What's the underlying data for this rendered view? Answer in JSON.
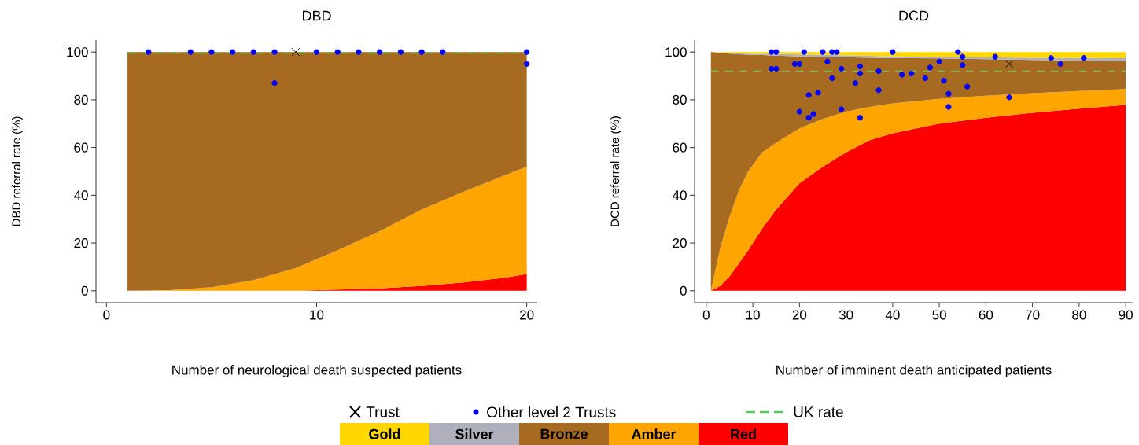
{
  "chart_data": [
    {
      "type": "area",
      "title": "DBD",
      "xlabel": "Number of neurological death suspected patients",
      "ylabel": "DBD referral rate (%)",
      "x": [
        1,
        3,
        5,
        7,
        9,
        11,
        13,
        15,
        17,
        19,
        20
      ],
      "stacked": true,
      "xlim": [
        -0.5,
        20.5
      ],
      "ylim": [
        -5,
        105
      ],
      "xticks": [
        0,
        10,
        20
      ],
      "yticks": [
        0,
        20,
        40,
        60,
        80,
        100
      ],
      "series": [
        {
          "color": "#ff0000",
          "values": [
            0,
            0,
            0,
            0,
            0,
            0.5,
            1,
            2,
            3.5,
            5.5,
            7
          ]
        },
        {
          "color": "#ffa500",
          "values": [
            0,
            0.3,
            1.5,
            4.5,
            9.5,
            16.5,
            24,
            32,
            38,
            43,
            45
          ]
        },
        {
          "color": "#a66a21",
          "values": [
            100,
            99.7,
            98.5,
            95.5,
            90.5,
            83,
            75,
            66,
            58.5,
            51.5,
            48
          ]
        },
        {
          "type": "scatter",
          "marker": "circle",
          "color": "#0000ff",
          "x": [
            2,
            4,
            5,
            6,
            7,
            8,
            8,
            10,
            11,
            12,
            13,
            14,
            15,
            16,
            20,
            20
          ],
          "values": [
            100,
            100,
            100,
            100,
            100,
            100,
            87,
            100,
            100,
            100,
            100,
            100,
            100,
            100,
            100,
            95
          ]
        },
        {
          "type": "scatter",
          "marker": "cross",
          "color": "#000000",
          "x": [
            9
          ],
          "values": [
            100
          ]
        }
      ],
      "ref_lines": [
        {
          "axis": "y",
          "value": 99.5,
          "color": "#5ac85a",
          "line_style": "dashed"
        }
      ]
    },
    {
      "type": "area",
      "title": "DCD",
      "xlabel": "Number of imminent death anticipated patients",
      "ylabel": "DCD referral rate (%)",
      "x": [
        1,
        3,
        5,
        7,
        9,
        12,
        15,
        20,
        25,
        30,
        35,
        40,
        50,
        60,
        70,
        80,
        90
      ],
      "stacked": true,
      "xlim": [
        -2.5,
        91.5
      ],
      "ylim": [
        -5,
        105
      ],
      "xticks": [
        0,
        10,
        20,
        30,
        40,
        50,
        60,
        70,
        80,
        90
      ],
      "yticks": [
        0,
        20,
        40,
        60,
        80,
        100
      ],
      "legend": "bottom",
      "series": [
        {
          "name": "Red",
          "color": "#ff0000",
          "values": [
            0,
            2,
            6,
            11.5,
            17,
            26,
            34,
            45,
            52,
            58,
            63,
            66,
            70,
            72.5,
            74.5,
            76.3,
            77.8
          ]
        },
        {
          "name": "Amber",
          "color": "#ffa500",
          "values": [
            0,
            16,
            25,
            30.5,
            33,
            32,
            28,
            23,
            20,
            17,
            14,
            12.5,
            10.4,
            9.2,
            8.3,
            7.4,
            6.7
          ]
        },
        {
          "name": "Bronze",
          "color": "#a66a21",
          "values": [
            100,
            81.7,
            68.3,
            57.1,
            48.9,
            40.7,
            36.5,
            30.2,
            26,
            22.8,
            20.6,
            19,
            16.9,
            15.3,
            13.9,
            12.7,
            11.7
          ]
        },
        {
          "name": "Silver",
          "color": "#b0b0bc",
          "values": [
            0,
            0.1,
            0.2,
            0.3,
            0.4,
            0.5,
            0.8,
            0.8,
            0.8,
            0.8,
            0.8,
            0.7,
            0.7,
            0.8,
            0.9,
            1.1,
            1.2
          ]
        },
        {
          "name": "Gold",
          "color": "#ffd700",
          "values": [
            0,
            0.2,
            0.5,
            0.6,
            0.7,
            0.8,
            0.7,
            1,
            1.2,
            1.4,
            1.6,
            1.8,
            2,
            2.2,
            2.4,
            2.5,
            2.6
          ]
        },
        {
          "name": "Other level 2 Trusts",
          "type": "scatter",
          "marker": "circle",
          "color": "#0000ff",
          "x": [
            14,
            15,
            14,
            15,
            19,
            20,
            21,
            25,
            27,
            28,
            26,
            27,
            29,
            22,
            24,
            20,
            22,
            23,
            29,
            33,
            33,
            32,
            33,
            37,
            37,
            40,
            42,
            44,
            47,
            48,
            50,
            51,
            52,
            52,
            54,
            55,
            55,
            56,
            62,
            65,
            74,
            76,
            81
          ],
          "values": [
            100,
            100,
            93,
            93,
            95,
            95,
            100,
            100,
            100,
            100,
            96,
            89,
            93,
            82,
            83,
            75,
            72.5,
            74,
            76,
            94,
            91,
            87,
            72.5,
            92,
            84,
            100,
            90.5,
            91,
            89,
            93.5,
            96,
            88,
            82.5,
            77,
            100,
            98,
            94.5,
            85.5,
            98,
            81,
            97.5,
            95,
            97.5
          ]
        },
        {
          "name": "Trust",
          "type": "scatter",
          "marker": "cross",
          "color": "#000000",
          "x": [
            65
          ],
          "values": [
            95
          ]
        }
      ],
      "ref_lines": [
        {
          "axis": "y",
          "value": 92,
          "label": "UK rate",
          "color": "#5ac85a",
          "line_style": "dashed"
        }
      ]
    }
  ]
}
